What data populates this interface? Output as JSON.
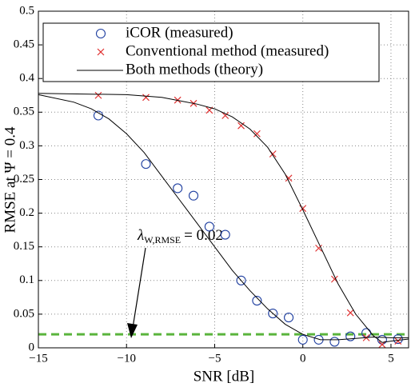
{
  "chart_data": {
    "type": "line_scatter",
    "xlabel": "SNR [dB]",
    "ylabel": "RMSE at Ψ = 0.4",
    "xlim": [
      -15,
      6
    ],
    "ylim": [
      0,
      0.5
    ],
    "xticks": [
      {
        "value": -15,
        "label": "−15"
      },
      {
        "value": -10,
        "label": "−10"
      },
      {
        "value": -5,
        "label": "−5"
      },
      0,
      5
    ],
    "yticks": [
      0,
      0.05,
      0.1,
      0.15,
      0.2,
      0.25,
      0.3,
      0.35,
      0.4,
      0.45,
      0.5
    ],
    "grid": true,
    "legend": "top-left",
    "series": [
      {
        "name": "iCOR (measured)",
        "color": "#1f3fa0",
        "marker": "circle",
        "x": [
          -11.6,
          -8.9,
          -7.1,
          -6.2,
          -5.3,
          -4.4,
          -3.5,
          -2.6,
          -1.7,
          -0.8,
          0,
          0.9,
          1.8,
          2.7,
          3.6,
          4.5,
          5.4
        ],
        "values": [
          0.345,
          0.273,
          0.237,
          0.226,
          0.18,
          0.168,
          0.1,
          0.07,
          0.051,
          0.045,
          0.012,
          0.012,
          0.009,
          0.017,
          0.022,
          0.012,
          0.013
        ]
      },
      {
        "name": "Conventional method (measured)",
        "color": "#e03030",
        "marker": "x",
        "x": [
          -11.6,
          -8.9,
          -7.1,
          -6.2,
          -5.3,
          -4.4,
          -3.5,
          -2.6,
          -1.7,
          -0.8,
          0,
          0.9,
          1.8,
          2.7,
          3.6,
          4.5,
          5.4
        ],
        "values": [
          0.375,
          0.372,
          0.368,
          0.363,
          0.353,
          0.345,
          0.33,
          0.318,
          0.288,
          0.252,
          0.207,
          0.148,
          0.102,
          0.052,
          0.015,
          0.005,
          0.01
        ]
      },
      {
        "name": "Both methods (theory)",
        "color": "#000000",
        "marker": "line",
        "x": [
          -15,
          -13,
          -12,
          -11,
          -10,
          -9,
          -8,
          -7,
          -6,
          -5,
          -4,
          -3,
          -2,
          -1,
          0,
          1,
          2,
          3,
          4,
          5,
          6,
          null,
          -15,
          -10,
          -8,
          -6,
          -5,
          -4,
          -3,
          -2,
          -1,
          0,
          1,
          2,
          3,
          4,
          4.5,
          5,
          6
        ],
        "values": [
          0.376,
          0.365,
          0.355,
          0.34,
          0.318,
          0.29,
          0.255,
          0.22,
          0.185,
          0.15,
          0.115,
          0.085,
          0.058,
          0.035,
          0.02,
          0.012,
          0.012,
          0.014,
          0.016,
          0.015,
          0.015,
          null,
          0.378,
          0.376,
          0.372,
          0.362,
          0.355,
          0.343,
          0.325,
          0.298,
          0.258,
          0.205,
          0.15,
          0.095,
          0.05,
          0.018,
          0.008,
          0.01,
          0.013
        ]
      }
    ],
    "threshold": {
      "value": 0.02,
      "color": "#5ab43c",
      "symbol": "λ",
      "subscript": "W,RMSE",
      "label": "= 0.02"
    }
  }
}
